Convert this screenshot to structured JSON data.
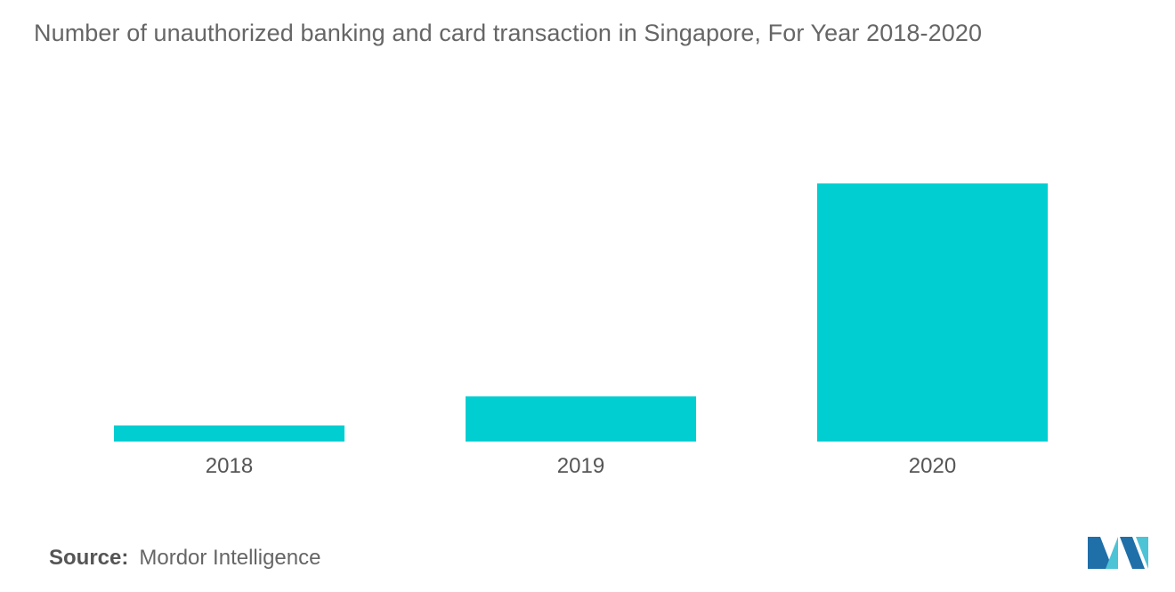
{
  "chart_data": {
    "type": "bar",
    "title": "Number of unauthorized banking and card transaction in Singapore, For Year 2018-2020",
    "categories": [
      "2018",
      "2019",
      "2020"
    ],
    "values": [
      1,
      2.8,
      16
    ],
    "ylim": [
      0,
      17
    ],
    "grid": false,
    "bar_color": "#00CED1"
  },
  "source": {
    "label": "Source:",
    "text": "Mordor Intelligence"
  },
  "logo": {
    "icon": "mordor-intelligence-logo",
    "colors": [
      "#1F6FA8",
      "#4DC3D6"
    ]
  }
}
